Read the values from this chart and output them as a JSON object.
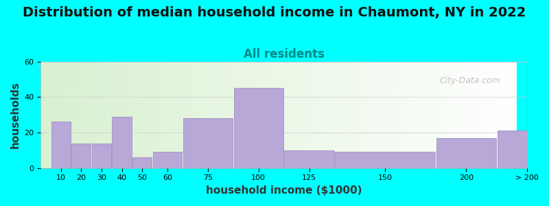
{
  "title": "Distribution of median household income in Chaumont, NY in 2022",
  "subtitle": "All residents",
  "xlabel": "household income ($1000)",
  "ylabel": "households",
  "background_color": "#00FFFF",
  "plot_bg_color_left": "#d8f0d0",
  "plot_bg_color_right": "#ffffff",
  "bar_color": "#b8a8d8",
  "bar_edge_color": "#9988bb",
  "categories": [
    "10",
    "20",
    "30",
    "40",
    "50",
    "60",
    "75",
    "100",
    "125",
    "150",
    "200",
    "> 200"
  ],
  "values": [
    26,
    14,
    14,
    29,
    6,
    9,
    28,
    45,
    10,
    9,
    17,
    21
  ],
  "ylim": [
    0,
    60
  ],
  "yticks": [
    0,
    20,
    40,
    60
  ],
  "title_fontsize": 14,
  "subtitle_fontsize": 12,
  "subtitle_color": "#008888",
  "axis_label_fontsize": 11,
  "watermark": "City-Data.com"
}
